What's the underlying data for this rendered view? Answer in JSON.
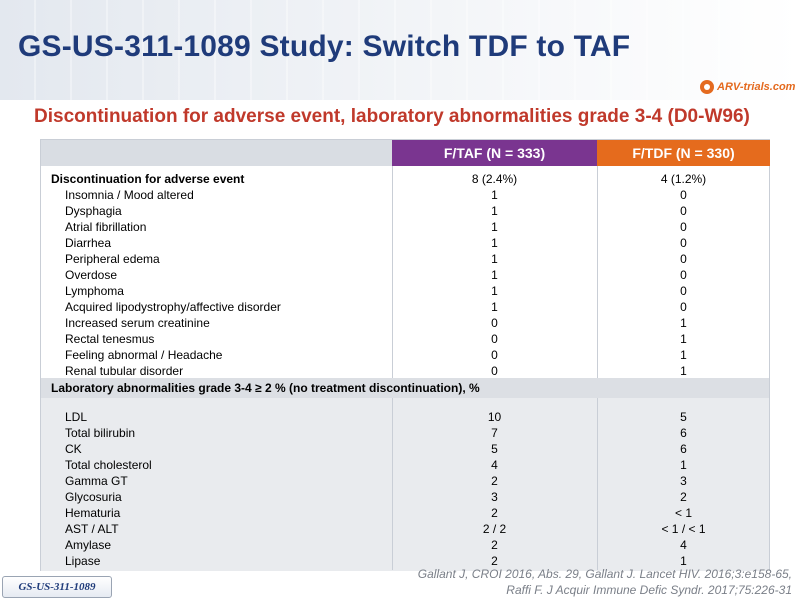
{
  "title": "GS-US-311-1089 Study: Switch TDF to TAF",
  "logo_text": "ARV-trials.com",
  "subtitle": "Discontinuation for adverse event, laboratory abnormalities grade 3-4 (D0-W96)",
  "table": {
    "col_taf": "F/TAF (N = 333)",
    "col_tdf": "F/TDF (N = 330)",
    "section1": {
      "label": "Discontinuation for adverse event",
      "taf": "8 (2.4%)",
      "tdf": "4 (1.2%)"
    },
    "rows1": [
      {
        "label": "Insomnia  / Mood altered",
        "taf": "1",
        "tdf": "0"
      },
      {
        "label": "Dysphagia",
        "taf": "1",
        "tdf": "0"
      },
      {
        "label": "Atrial fibrillation",
        "taf": "1",
        "tdf": "0"
      },
      {
        "label": "Diarrhea",
        "taf": "1",
        "tdf": "0"
      },
      {
        "label": "Peripheral edema",
        "taf": "1",
        "tdf": "0"
      },
      {
        "label": "Overdose",
        "taf": "1",
        "tdf": "0"
      },
      {
        "label": "Lymphoma",
        "taf": "1",
        "tdf": "0"
      },
      {
        "label": "Acquired lipodystrophy/affective  disorder",
        "taf": "1",
        "tdf": "0"
      },
      {
        "label": "Increased serum creatinine",
        "taf": "0",
        "tdf": "1"
      },
      {
        "label": "Rectal tenesmus",
        "taf": "0",
        "tdf": "1"
      },
      {
        "label": "Feeling abnormal / Headache",
        "taf": "0",
        "tdf": "1"
      },
      {
        "label": "Renal tubular disorder",
        "taf": "0",
        "tdf": "1"
      }
    ],
    "section2": {
      "label": "Laboratory abnormalities grade 3-4 ≥ 2 % (no treatment discontinuation), %"
    },
    "rows2": [
      {
        "label": "LDL",
        "taf": "10",
        "tdf": "5"
      },
      {
        "label": "Total bilirubin",
        "taf": "7",
        "tdf": "6"
      },
      {
        "label": "CK",
        "taf": "5",
        "tdf": "6"
      },
      {
        "label": "Total cholesterol",
        "taf": "4",
        "tdf": "1"
      },
      {
        "label": "Gamma GT",
        "taf": "2",
        "tdf": "3"
      },
      {
        "label": "Glycosuria",
        "taf": "3",
        "tdf": "2"
      },
      {
        "label": "Hematuria",
        "taf": "2",
        "tdf": "< 1"
      },
      {
        "label": "AST / ALT",
        "taf": "2 / 2",
        "tdf": "< 1 / < 1"
      },
      {
        "label": "Amylase",
        "taf": "2",
        "tdf": "4"
      },
      {
        "label": "Lipase",
        "taf": "2",
        "tdf": "1"
      }
    ]
  },
  "footnote_line1": "Gallant J, CROI 2016, Abs. 29, Gallant J. Lancet HIV. 2016;3:e158-65,",
  "footnote_line2": "Raffi F. J Acquir Immune Defic Syndr. 2017;75:226-31",
  "study_tag": "GS-US-311-1089"
}
